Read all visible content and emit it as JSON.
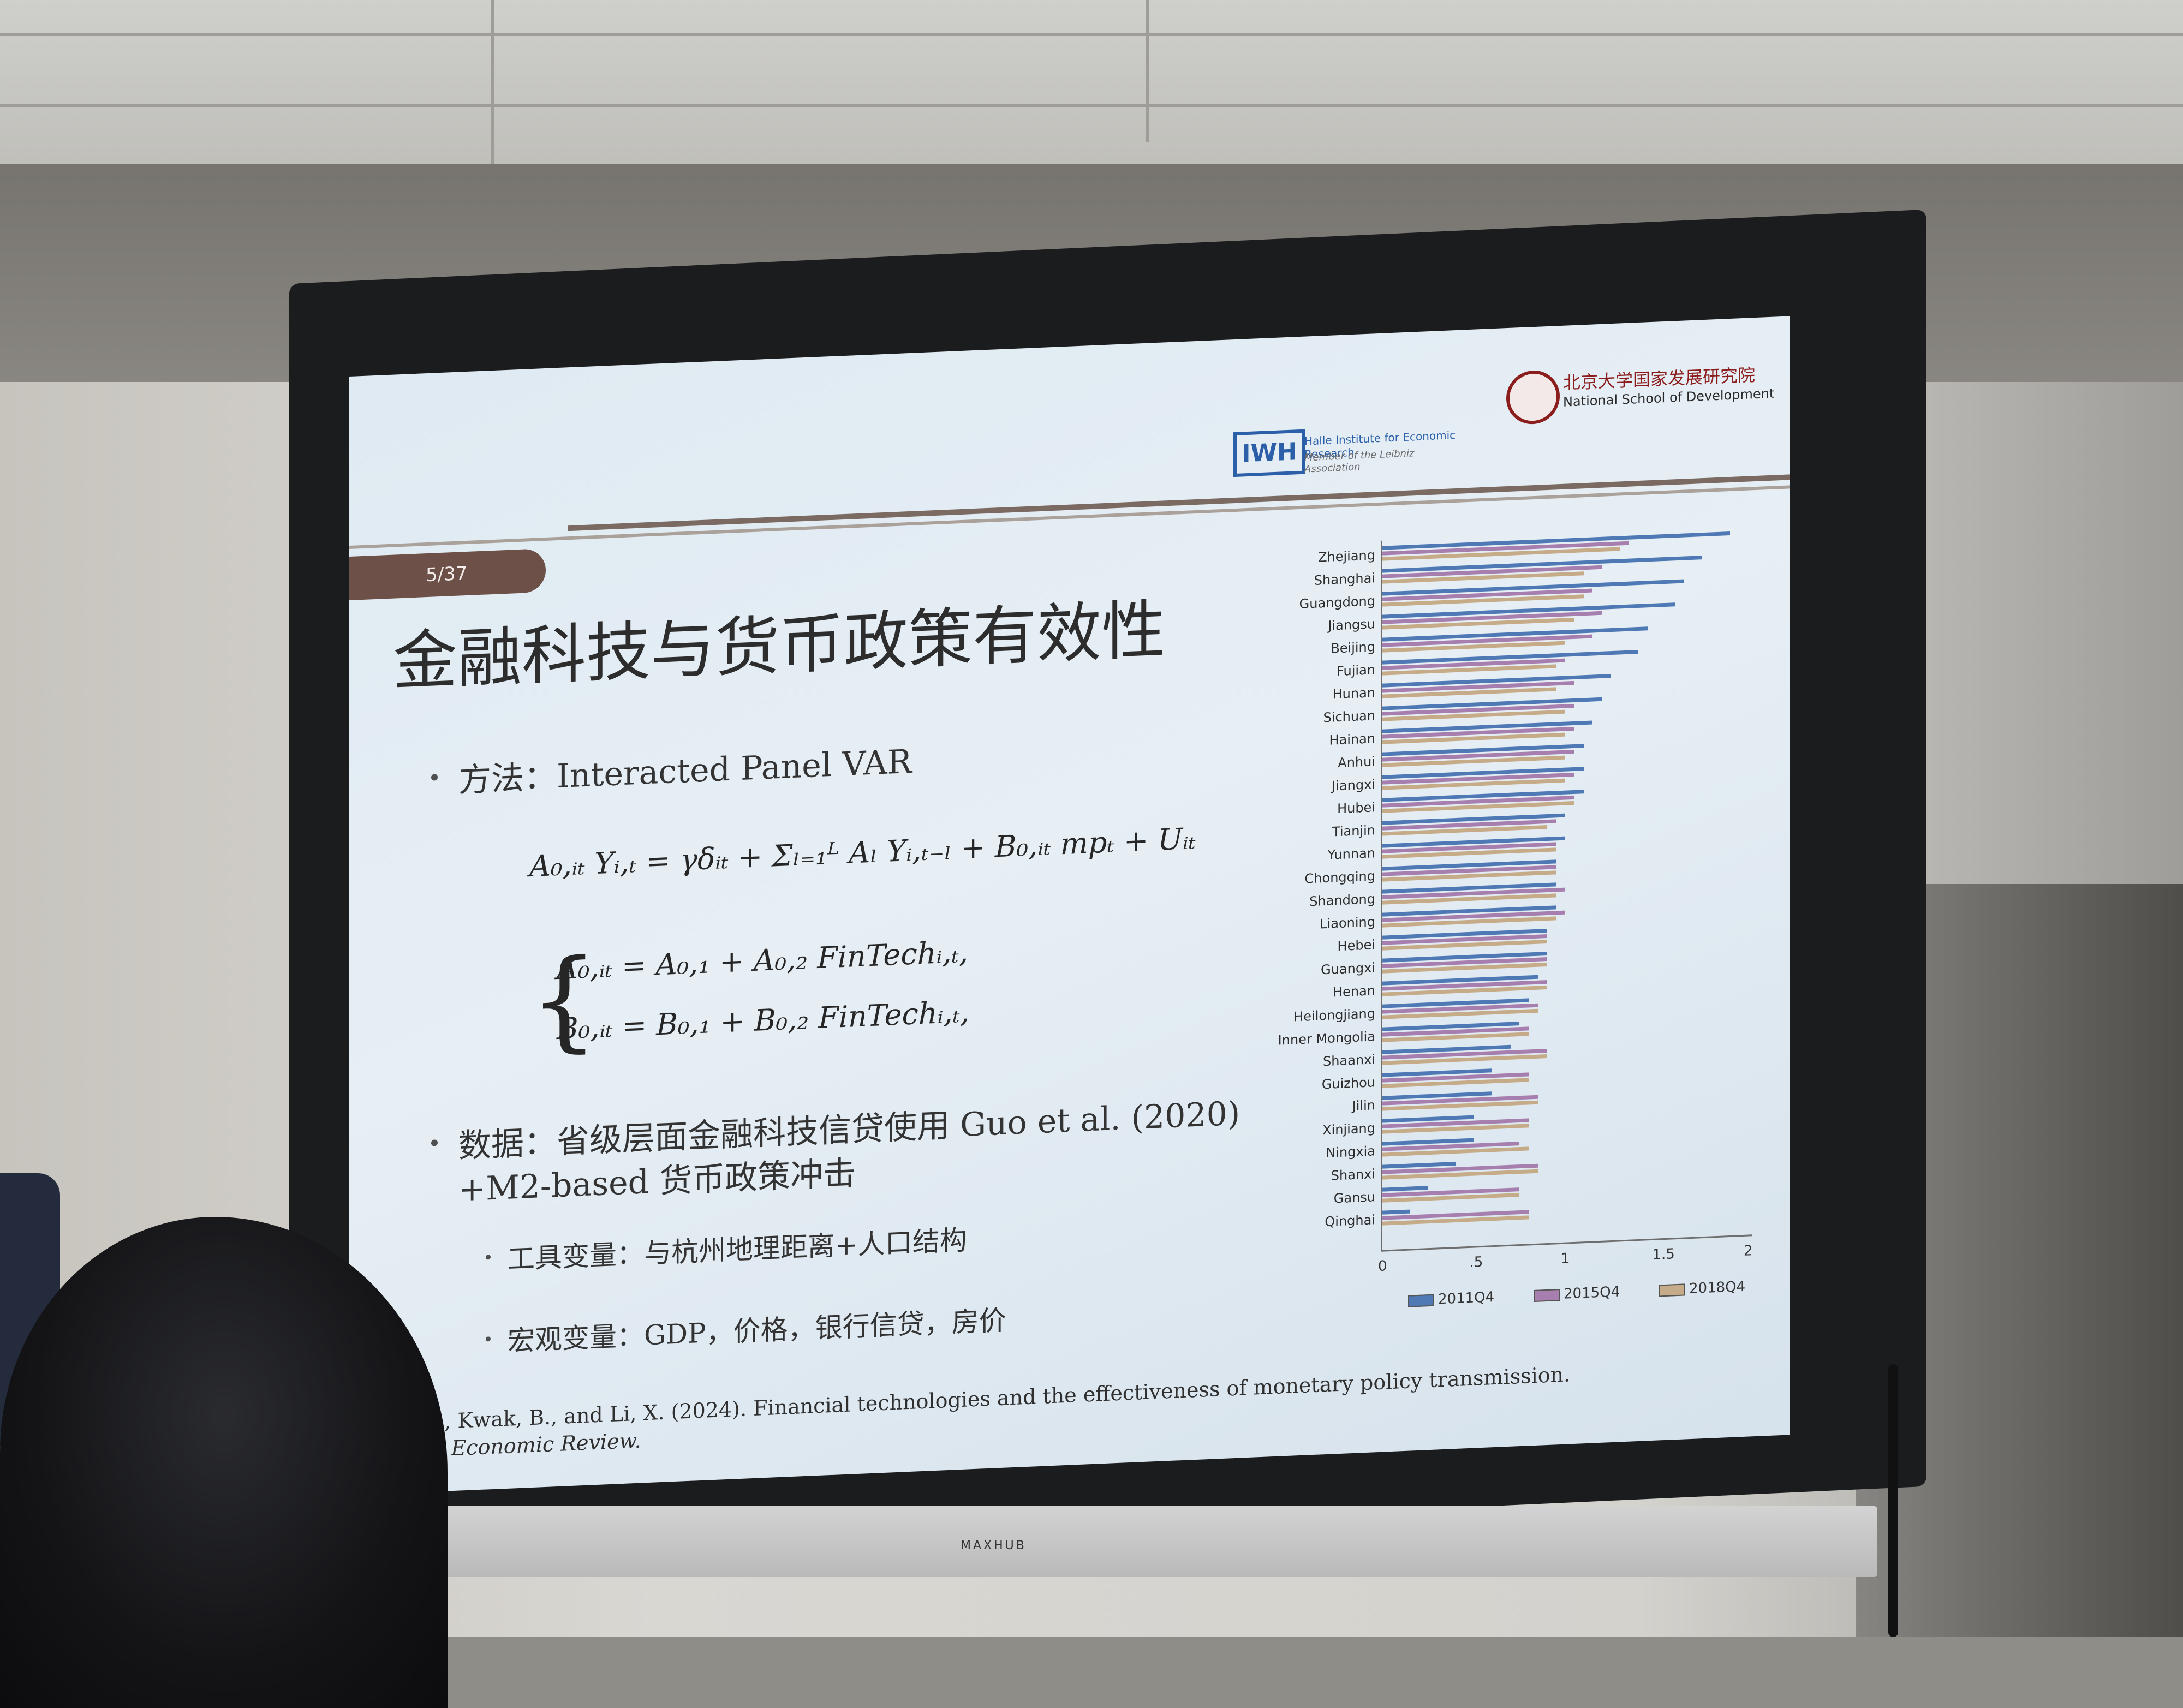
{
  "slide": {
    "page_number": "5/37",
    "title": "金融科技与货币政策有效性",
    "bullets": {
      "method": "方法：Interacted Panel VAR",
      "data_line1": "数据：省级层面金融科技信贷使用  Guo et al. (2020)",
      "data_line2": "+M2-based 货币政策冲击",
      "instrument": "工具变量：与杭州地理距离+人口结构",
      "macro": "宏观变量：GDP，价格，银行信贷，房价"
    },
    "equations": {
      "main": "A₀,ᵢₜ Yᵢ,ₜ = γδᵢₜ + Σₗ₌₁ᴸ Aₗ Yᵢ,ₜ₋ₗ + B₀,ᵢₜ mpₜ + Uᵢₜ",
      "a_line": "A₀,ᵢₜ  = A₀,₁ + A₀,₂ FinTechᵢ,ₜ,",
      "b_line": "B₀,ᵢₜ  = B₀,₁ + B₀,₂ FinTechᵢ,ₜ,"
    },
    "reference_line1": "l., Kwak, B., and Li, X. (2024). Financial technologies and the effectiveness of monetary policy transmission.",
    "reference_line2": "n Economic Review.",
    "logos": {
      "iwh_mark": "IWH",
      "iwh_line1": "Halle Institute for Economic Research",
      "iwh_line2": "Member of the Leibniz Association",
      "pku_name": "北京大学国家发展研究院",
      "pku_en": "National School of Development"
    }
  },
  "device": {
    "brand": "MAXHUB"
  },
  "colors": {
    "series_2011": "#4f79b4",
    "series_2015": "#a77fae",
    "series_2018": "#c6ab88",
    "slide_accent": "#6d5148"
  },
  "chart_data": {
    "type": "bar",
    "orientation": "horizontal",
    "categories": [
      "Zhejiang",
      "Shanghai",
      "Guangdong",
      "Jiangsu",
      "Beijing",
      "Fujian",
      "Hunan",
      "Sichuan",
      "Hainan",
      "Anhui",
      "Jiangxi",
      "Hubei",
      "Tianjin",
      "Yunnan",
      "Chongqing",
      "Shandong",
      "Liaoning",
      "Hebei",
      "Guangxi",
      "Henan",
      "Heilongjiang",
      "Inner Mongolia",
      "Shaanxi",
      "Guizhou",
      "Jilin",
      "Xinjiang",
      "Ningxia",
      "Shanxi",
      "Gansu",
      "Qinghai"
    ],
    "series": [
      {
        "name": "2011Q4",
        "values": [
          1.9,
          1.75,
          1.65,
          1.6,
          1.45,
          1.4,
          1.25,
          1.2,
          1.15,
          1.1,
          1.1,
          1.1,
          1.0,
          1.0,
          0.95,
          0.95,
          0.95,
          0.9,
          0.9,
          0.85,
          0.8,
          0.75,
          0.7,
          0.6,
          0.6,
          0.5,
          0.5,
          0.4,
          0.25,
          0.15
        ]
      },
      {
        "name": "2015Q4",
        "values": [
          1.35,
          1.2,
          1.15,
          1.2,
          1.15,
          1.0,
          1.05,
          1.05,
          1.05,
          1.05,
          1.05,
          1.05,
          0.95,
          0.95,
          0.95,
          1.0,
          1.0,
          0.9,
          0.9,
          0.9,
          0.85,
          0.8,
          0.9,
          0.8,
          0.85,
          0.8,
          0.75,
          0.85,
          0.75,
          0.8
        ]
      },
      {
        "name": "2018Q4",
        "values": [
          1.3,
          1.1,
          1.1,
          1.05,
          1.0,
          0.95,
          0.95,
          1.0,
          1.0,
          1.0,
          1.0,
          1.05,
          0.9,
          0.95,
          0.95,
          0.95,
          0.95,
          0.9,
          0.9,
          0.9,
          0.85,
          0.8,
          0.9,
          0.8,
          0.85,
          0.8,
          0.8,
          0.85,
          0.75,
          0.8
        ]
      }
    ],
    "xticks": [
      "0",
      ".5",
      "1",
      "1.5",
      "2"
    ],
    "xlim": [
      0,
      2
    ],
    "legend_position": "bottom"
  }
}
